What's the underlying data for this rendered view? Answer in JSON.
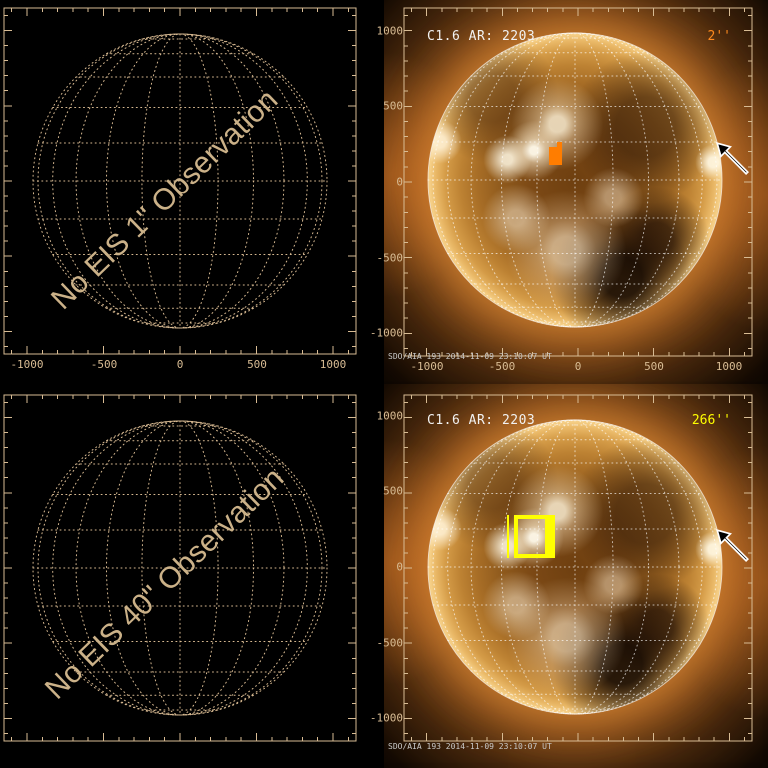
{
  "colors": {
    "background": "#000000",
    "axis_frame": "#d8bc94",
    "empty_text": "#cbb188",
    "title_white": "#f2f2f2",
    "timestamp_gray": "#c9c9c9",
    "marker_orange": "#ff7d00",
    "marker_yellow": "#ffff00",
    "grid_white": "#ffffff"
  },
  "panels": {
    "top_left": {
      "message": "No EIS 1\" Observation",
      "x_tick_labels": [
        "-1000",
        "-500",
        "0",
        "500",
        "1000"
      ]
    },
    "top_right": {
      "title": "C1.6 AR: 2203",
      "fov": "2''",
      "timestamp": "SDO/AIA 193 2014-11-09 23:10:07 UT",
      "x_tick_labels": [
        "-1000",
        "-500",
        "0",
        "500",
        "1000"
      ],
      "y_tick_labels": [
        "1000",
        "500",
        "0",
        "-500",
        "-1000"
      ]
    },
    "bottom_left": {
      "message": "No EIS 40\" Observation"
    },
    "bottom_right": {
      "title": "C1.6 AR: 2203",
      "fov": "266''",
      "timestamp": "SDO/AIA 193 2014-11-09 23:10:07 UT",
      "y_tick_labels": [
        "1000",
        "500",
        "0",
        "-500",
        "-1000"
      ]
    }
  },
  "chart_data": [
    {
      "panel": "top_left",
      "type": "scatter",
      "title": "No EIS 1\" Observation",
      "xlim": [
        -1150,
        1150
      ],
      "ylim": [
        -1150,
        1150
      ],
      "x_ticks": [
        -1000,
        -500,
        0,
        500,
        1000
      ],
      "y_ticks": [
        -1000,
        -500,
        0,
        500,
        1000
      ],
      "series": [],
      "annotations": [
        "empty dotted solar latitude/longitude grid, 15 degree spacing, solar radius ~960 arcsec, no EIS data"
      ]
    },
    {
      "panel": "top_right",
      "type": "heatmap",
      "title": "C1.6 AR: 2203",
      "subtitle": "2''",
      "image_desc": "SDO/AIA 193 full-disk EUV image",
      "timestamp": "2014-11-09 23:10:07 UT",
      "xlim": [
        -1150,
        1150
      ],
      "ylim": [
        -1150,
        1150
      ],
      "x_ticks": [
        -1000,
        -500,
        0,
        500,
        1000
      ],
      "y_ticks": [
        -1000,
        -500,
        0,
        500,
        1000
      ],
      "fov_marker_arcsec": {
        "x": [
          -190,
          -100
        ],
        "y": [
          100,
          260
        ]
      },
      "arrow_target_arcsec": [
        930,
        240
      ]
    },
    {
      "panel": "bottom_left",
      "type": "scatter",
      "title": "No EIS 40\" Observation",
      "xlim": [
        -1150,
        1150
      ],
      "ylim": [
        -1150,
        1150
      ],
      "x_ticks": [
        -1000,
        -500,
        0,
        500,
        1000
      ],
      "y_ticks": [
        -1000,
        -500,
        0,
        500,
        1000
      ],
      "series": [],
      "annotations": [
        "empty dotted solar latitude/longitude grid, 15 degree spacing, solar radius ~960 arcsec, no EIS data"
      ]
    },
    {
      "panel": "bottom_right",
      "type": "heatmap",
      "title": "C1.6 AR: 2203",
      "subtitle": "266''",
      "image_desc": "SDO/AIA 193 full-disk EUV image",
      "timestamp": "2014-11-09 23:10:07 UT",
      "xlim": [
        -1150,
        1150
      ],
      "ylim": [
        -1150,
        1150
      ],
      "x_ticks": [
        -1000,
        -500,
        0,
        500,
        1000
      ],
      "y_ticks": [
        -1000,
        -500,
        0,
        500,
        1000
      ],
      "fov_marker_arcsec": {
        "x": [
          -420,
          -150
        ],
        "y": [
          65,
          350
        ]
      },
      "arrow_target_arcsec": [
        930,
        240
      ]
    }
  ]
}
